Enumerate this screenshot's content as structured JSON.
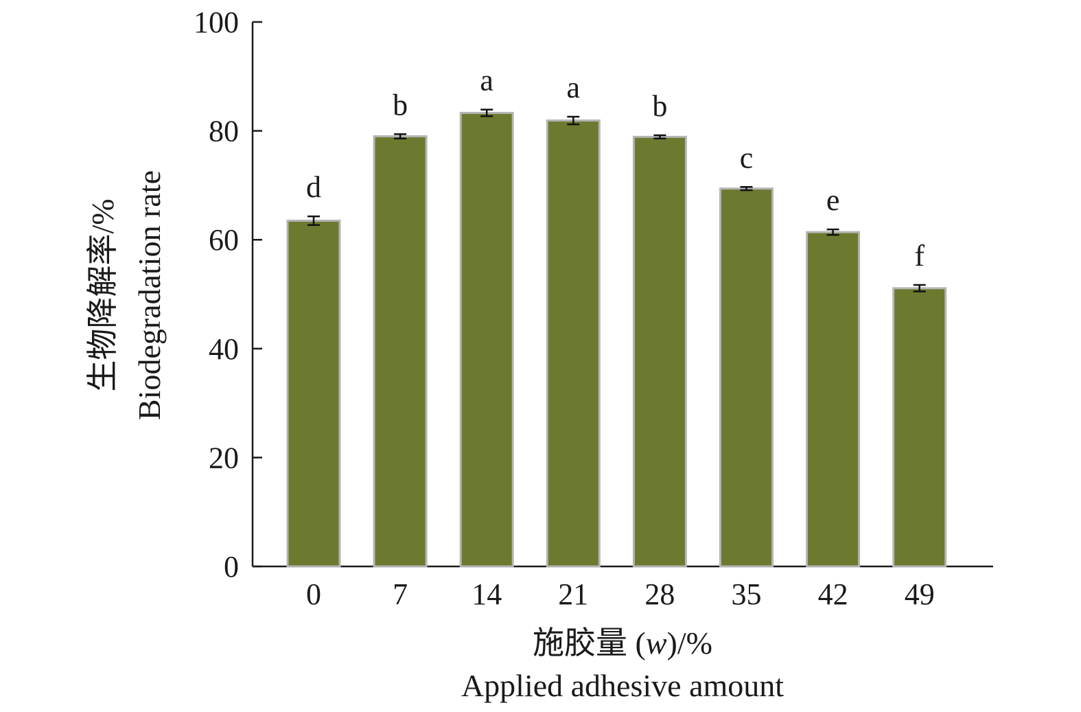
{
  "chart_data": {
    "type": "bar",
    "categories": [
      "0",
      "7",
      "14",
      "21",
      "28",
      "35",
      "42",
      "49"
    ],
    "series": [
      {
        "values": [
          63.5,
          79.0,
          83.3,
          81.9,
          78.9,
          69.4,
          61.4,
          51.1
        ],
        "errors": [
          0.8,
          0.4,
          0.6,
          0.7,
          0.3,
          0.3,
          0.5,
          0.6
        ],
        "significance": [
          "d",
          "b",
          "a",
          "a",
          "b",
          "c",
          "e",
          "f"
        ]
      }
    ],
    "ylim": [
      0,
      100
    ],
    "yticks": [
      "0",
      "20",
      "40",
      "60",
      "80",
      "100"
    ],
    "ylabel_cn": "生物降解率/%",
    "ylabel_en": "Biodegradation rate",
    "xlabel_cn_prefix": "施胶量 (",
    "xlabel_cn_var": "w",
    "xlabel_cn_suffix": ")/%",
    "xlabel_en": "Applied adhesive amount",
    "grid": false,
    "legend": "none",
    "colors": {
      "bar_fill": "#6b7a2f",
      "bar_edge": "#b5b5b5",
      "axis": "#1a1a1a",
      "error_bar": "#111111"
    }
  }
}
